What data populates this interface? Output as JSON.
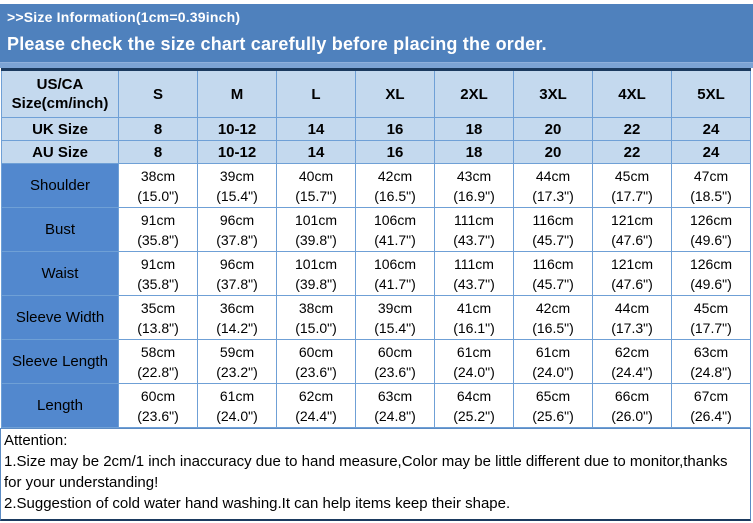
{
  "header": {
    "title": ">>Size Information(1cm=0.39inch)",
    "subtitle": "Please check the size chart carefully before placing the order."
  },
  "table": {
    "corner_label": "US/CA Size(cm/inch)",
    "size_columns": [
      "S",
      "M",
      "L",
      "XL",
      "2XL",
      "3XL",
      "4XL",
      "5XL"
    ],
    "size_rows": [
      {
        "label": "UK Size",
        "values": [
          "8",
          "10-12",
          "14",
          "16",
          "18",
          "20",
          "22",
          "24"
        ]
      },
      {
        "label": "AU Size",
        "values": [
          "8",
          "10-12",
          "14",
          "16",
          "18",
          "20",
          "22",
          "24"
        ]
      }
    ],
    "measurement_rows": [
      {
        "label": "Shoulder",
        "cells": [
          {
            "cm": "38cm",
            "inch": "(15.0\")"
          },
          {
            "cm": "39cm",
            "inch": "(15.4\")"
          },
          {
            "cm": "40cm",
            "inch": "(15.7\")"
          },
          {
            "cm": "42cm",
            "inch": "(16.5\")"
          },
          {
            "cm": "43cm",
            "inch": "(16.9\")"
          },
          {
            "cm": "44cm",
            "inch": "(17.3\")"
          },
          {
            "cm": "45cm",
            "inch": "(17.7\")"
          },
          {
            "cm": "47cm",
            "inch": "(18.5\")"
          }
        ]
      },
      {
        "label": "Bust",
        "cells": [
          {
            "cm": "91cm",
            "inch": "(35.8\")"
          },
          {
            "cm": "96cm",
            "inch": "(37.8\")"
          },
          {
            "cm": "101cm",
            "inch": "(39.8\")"
          },
          {
            "cm": "106cm",
            "inch": "(41.7\")"
          },
          {
            "cm": "111cm",
            "inch": "(43.7\")"
          },
          {
            "cm": "116cm",
            "inch": "(45.7\")"
          },
          {
            "cm": "121cm",
            "inch": "(47.6\")"
          },
          {
            "cm": "126cm",
            "inch": "(49.6\")"
          }
        ]
      },
      {
        "label": "Waist",
        "cells": [
          {
            "cm": "91cm",
            "inch": "(35.8\")"
          },
          {
            "cm": "96cm",
            "inch": "(37.8\")"
          },
          {
            "cm": "101cm",
            "inch": "(39.8\")"
          },
          {
            "cm": "106cm",
            "inch": "(41.7\")"
          },
          {
            "cm": "111cm",
            "inch": "(43.7\")"
          },
          {
            "cm": "116cm",
            "inch": "(45.7\")"
          },
          {
            "cm": "121cm",
            "inch": "(47.6\")"
          },
          {
            "cm": "126cm",
            "inch": "(49.6\")"
          }
        ]
      },
      {
        "label": "Sleeve Width",
        "cells": [
          {
            "cm": "35cm",
            "inch": "(13.8\")"
          },
          {
            "cm": "36cm",
            "inch": "(14.2\")"
          },
          {
            "cm": "38cm",
            "inch": "(15.0\")"
          },
          {
            "cm": "39cm",
            "inch": "(15.4\")"
          },
          {
            "cm": "41cm",
            "inch": "(16.1\")"
          },
          {
            "cm": "42cm",
            "inch": "(16.5\")"
          },
          {
            "cm": "44cm",
            "inch": "(17.3\")"
          },
          {
            "cm": "45cm",
            "inch": "(17.7\")"
          }
        ]
      },
      {
        "label": "Sleeve Length",
        "cells": [
          {
            "cm": "58cm",
            "inch": "(22.8\")"
          },
          {
            "cm": "59cm",
            "inch": "(23.2\")"
          },
          {
            "cm": "60cm",
            "inch": "(23.6\")"
          },
          {
            "cm": "60cm",
            "inch": "(23.6\")"
          },
          {
            "cm": "61cm",
            "inch": "(24.0\")"
          },
          {
            "cm": "61cm",
            "inch": "(24.0\")"
          },
          {
            "cm": "62cm",
            "inch": "(24.4\")"
          },
          {
            "cm": "63cm",
            "inch": "(24.8\")"
          }
        ]
      },
      {
        "label": "Length",
        "cells": [
          {
            "cm": "60cm",
            "inch": "(23.6\")"
          },
          {
            "cm": "61cm",
            "inch": "(24.0\")"
          },
          {
            "cm": "62cm",
            "inch": "(24.4\")"
          },
          {
            "cm": "63cm",
            "inch": "(24.8\")"
          },
          {
            "cm": "64cm",
            "inch": "(25.2\")"
          },
          {
            "cm": "65cm",
            "inch": "(25.6\")"
          },
          {
            "cm": "66cm",
            "inch": "(26.0\")"
          },
          {
            "cm": "67cm",
            "inch": "(26.4\")"
          }
        ]
      }
    ]
  },
  "attention": {
    "heading": "Attention:",
    "note1": "1.Size may be 2cm/1 inch inaccuracy due to hand measure,Color may be little different due to monitor,thanks for your understanding!",
    "note2": "2.Suggestion of cold water hand washing.It can help items keep their shape."
  },
  "colors": {
    "band_blue": "#4F81BD",
    "header_cell_blue": "#C4D9EE",
    "row_label_blue": "#5288CE",
    "cell_border_blue": "#6FA0D6",
    "outer_border_dark": "#1B3A5F"
  }
}
